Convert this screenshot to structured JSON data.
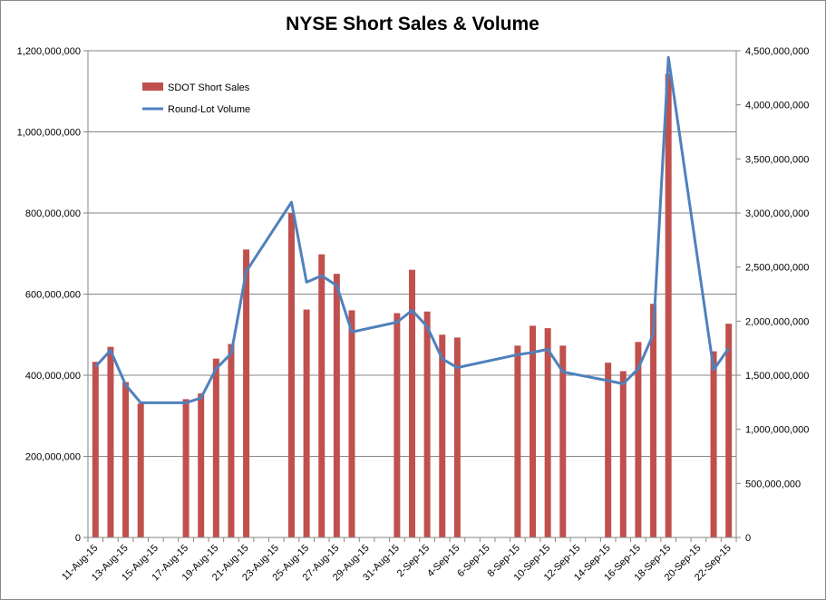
{
  "chart_data": {
    "type": "bar+line",
    "title": "NYSE Short Sales & Volume",
    "x": [
      "11-Aug-15",
      "12-Aug-15",
      "13-Aug-15",
      "14-Aug-15",
      "15-Aug-15",
      "16-Aug-15",
      "17-Aug-15",
      "18-Aug-15",
      "19-Aug-15",
      "20-Aug-15",
      "21-Aug-15",
      "22-Aug-15",
      "23-Aug-15",
      "24-Aug-15",
      "25-Aug-15",
      "26-Aug-15",
      "27-Aug-15",
      "28-Aug-15",
      "29-Aug-15",
      "30-Aug-15",
      "31-Aug-15",
      "1-Sep-15",
      "2-Sep-15",
      "3-Sep-15",
      "4-Sep-15",
      "5-Sep-15",
      "6-Sep-15",
      "7-Sep-15",
      "8-Sep-15",
      "9-Sep-15",
      "10-Sep-15",
      "11-Sep-15",
      "12-Sep-15",
      "13-Sep-15",
      "14-Sep-15",
      "15-Sep-15",
      "16-Sep-15",
      "17-Sep-15",
      "18-Sep-15",
      "19-Sep-15",
      "20-Sep-15",
      "21-Sep-15",
      "22-Sep-15"
    ],
    "xtick_labels": [
      "11-Aug-15",
      "13-Aug-15",
      "15-Aug-15",
      "17-Aug-15",
      "19-Aug-15",
      "21-Aug-15",
      "23-Aug-15",
      "25-Aug-15",
      "27-Aug-15",
      "29-Aug-15",
      "31-Aug-15",
      "2-Sep-15",
      "4-Sep-15",
      "6-Sep-15",
      "8-Sep-15",
      "10-Sep-15",
      "12-Sep-15",
      "14-Sep-15",
      "16-Sep-15",
      "18-Sep-15",
      "20-Sep-15",
      "22-Sep-15"
    ],
    "series": [
      {
        "name": "SDOT Short Sales",
        "kind": "bar",
        "axis": "left",
        "color": "#c0504d",
        "values": [
          433000000,
          470000000,
          383000000,
          330000000,
          null,
          null,
          341000000,
          355000000,
          441000000,
          477000000,
          710000000,
          null,
          null,
          800000000,
          562000000,
          698000000,
          650000000,
          560000000,
          null,
          null,
          553000000,
          660000000,
          557000000,
          500000000,
          493000000,
          null,
          null,
          null,
          473000000,
          522000000,
          516000000,
          473000000,
          null,
          null,
          431000000,
          410000000,
          482000000,
          576000000,
          1143000000,
          null,
          null,
          459000000,
          527000000
        ]
      },
      {
        "name": "Round-Lot Volume",
        "kind": "line",
        "axis": "right",
        "color": "#4f81bd",
        "values": [
          1580000000,
          1730000000,
          1410000000,
          1245000000,
          null,
          null,
          1245000000,
          1290000000,
          1560000000,
          1700000000,
          2460000000,
          null,
          null,
          3100000000,
          2360000000,
          2420000000,
          2330000000,
          1900000000,
          null,
          null,
          1990000000,
          2100000000,
          1950000000,
          1650000000,
          1570000000,
          null,
          null,
          null,
          1690000000,
          1710000000,
          1740000000,
          1530000000,
          null,
          null,
          1450000000,
          1420000000,
          1560000000,
          1880000000,
          4440000000,
          null,
          null,
          1550000000,
          1750000000
        ]
      }
    ],
    "y_left": {
      "lim": [
        0,
        1200000000
      ],
      "ticks": [
        "0",
        "200,000,000",
        "400,000,000",
        "600,000,000",
        "800,000,000",
        "1,000,000,000",
        "1,200,000,000"
      ]
    },
    "y_right": {
      "lim": [
        0,
        4500000000
      ],
      "ticks": [
        "0",
        "500,000,000",
        "1,000,000,000",
        "1,500,000,000",
        "2,000,000,000",
        "2,500,000,000",
        "3,000,000,000",
        "3,500,000,000",
        "4,000,000,000",
        "4,500,000,000"
      ]
    },
    "grid": "horizontal",
    "legend_position": "top-left inside plot"
  }
}
